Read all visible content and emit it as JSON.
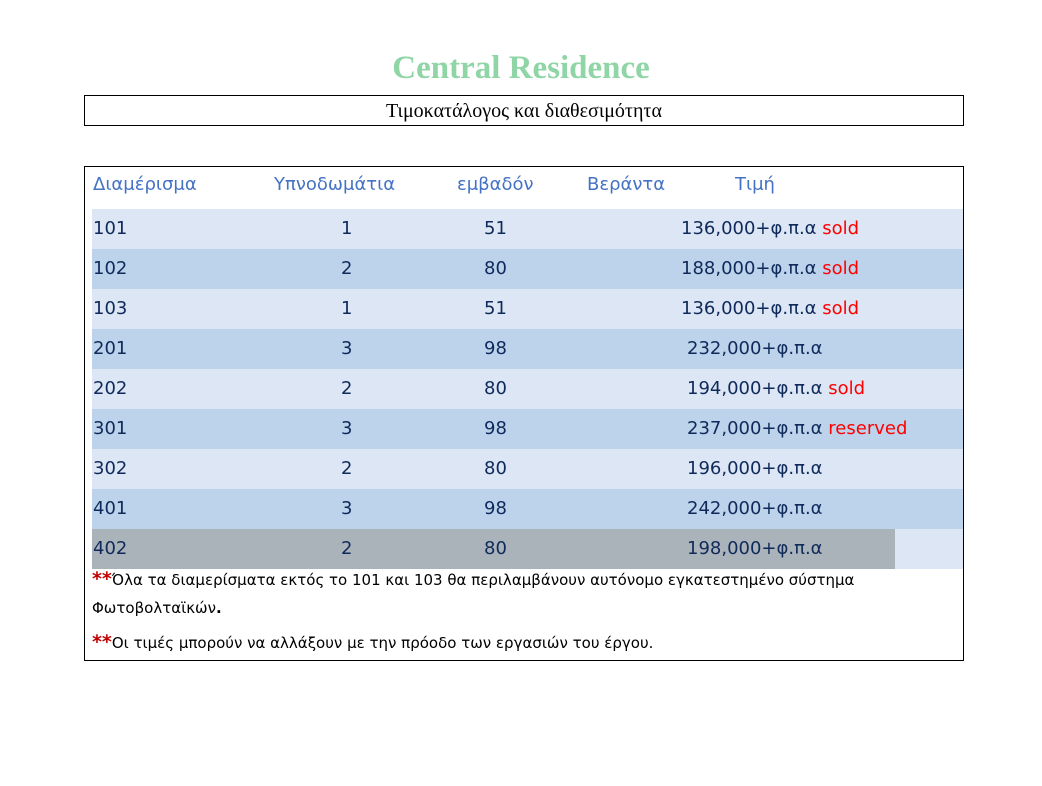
{
  "title": "Central Residence",
  "subtitle": "Τιμοκατάλογος και διαθεσιμότητα",
  "table": {
    "headers": [
      "Διαμέρισμα",
      "Υπνοδωμάτια",
      "εμβαδόν",
      "Βεράντα",
      "Τιμή"
    ],
    "rows": [
      {
        "unit": "101",
        "bedrooms": "1",
        "area": "51",
        "price": "136,000+φ.π.α",
        "status": "sold"
      },
      {
        "unit": "102",
        "bedrooms": "2",
        "area": "80",
        "price": "188,000+φ.π.α",
        "status": "sold"
      },
      {
        "unit": "103",
        "bedrooms": "1",
        "area": "51",
        "price": "136,000+φ.π.α",
        "status": "sold"
      },
      {
        "unit": "201",
        "bedrooms": "3",
        "area": "98",
        "price": "232,000+φ.π.α",
        "status": ""
      },
      {
        "unit": "202",
        "bedrooms": "2",
        "area": "80",
        "price": "194,000+φ.π.α",
        "status": "sold"
      },
      {
        "unit": "301",
        "bedrooms": "3",
        "area": "98",
        "price": "237,000+φ.π.α",
        "status": "reserved"
      },
      {
        "unit": "302",
        "bedrooms": "2",
        "area": "80",
        "price": "196,000+φ.π.α",
        "status": ""
      },
      {
        "unit": "401",
        "bedrooms": "3",
        "area": "98",
        "price": "242,000+φ.π.α",
        "status": ""
      },
      {
        "unit": "402",
        "bedrooms": "2",
        "area": "80",
        "price": "198,000+φ.π.α",
        "status": ""
      }
    ]
  },
  "notes": {
    "marker": "**",
    "note1_line1": "Όλα τα διαμερίσματα εκτός το 101 και 103 θα περιλαμβάνουν αυτόνομο εγκατεστημένο σύστημα",
    "note1_line2": "Φωτοβολταϊκών",
    "note1_end": ".",
    "note2": "Οι τιμές μπορούν να αλλάξουν με την πρόοδο των εργασιών του έργου."
  },
  "colors": {
    "title": "#8fd5a6",
    "header_text": "#4472c4",
    "row_light": "#dce6f4",
    "row_dark": "#bdd3ec",
    "row_highlight": "#abb3ba",
    "status_text": "#ff0000",
    "marker": "#c00000"
  }
}
